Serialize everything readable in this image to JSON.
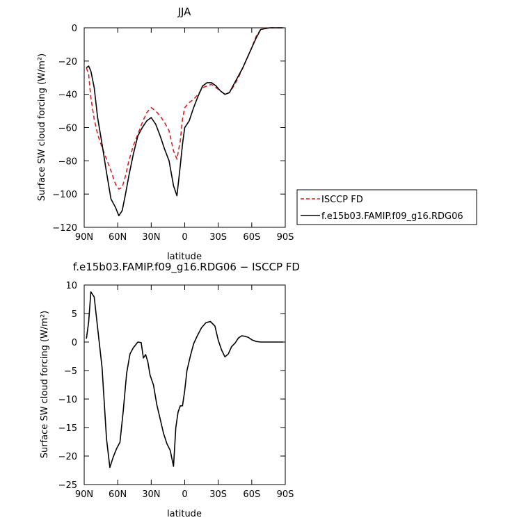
{
  "chart_data": [
    {
      "type": "line",
      "title": "JJA",
      "xlabel": "latitude",
      "ylabel": "Surface SW cloud forcing (W/m²)",
      "xlim": [
        90,
        -90
      ],
      "ylim": [
        -120,
        0
      ],
      "x_ticks": [
        {
          "value": 90,
          "label": "90N"
        },
        {
          "value": 60,
          "label": "60N"
        },
        {
          "value": 30,
          "label": "30N"
        },
        {
          "value": 0,
          "label": "0"
        },
        {
          "value": -30,
          "label": "30S"
        },
        {
          "value": -60,
          "label": "60S"
        },
        {
          "value": -90,
          "label": "90S"
        }
      ],
      "y_ticks": [
        {
          "value": 0,
          "label": "0"
        },
        {
          "value": -20,
          "label": "−20"
        },
        {
          "value": -40,
          "label": "−40"
        },
        {
          "value": -60,
          "label": "−60"
        },
        {
          "value": -80,
          "label": "−80"
        },
        {
          "value": -100,
          "label": "−100"
        },
        {
          "value": -120,
          "label": "−120"
        }
      ],
      "legend": {
        "placement": "right"
      },
      "series": [
        {
          "name": "ISCCP FD",
          "color": "#e31a1c",
          "dash": "dashed",
          "x": [
            88,
            86,
            84,
            81,
            78,
            74,
            70,
            66,
            62,
            59,
            56,
            53,
            50,
            46,
            42,
            38,
            34,
            30,
            26,
            22,
            18,
            14,
            10,
            7,
            4,
            2,
            0,
            -4,
            -8,
            -12,
            -16,
            -20,
            -24,
            -28,
            -32,
            -36,
            -40,
            -44,
            -48,
            -52,
            -56,
            -60,
            -64,
            -68,
            -72,
            -76,
            -80,
            -84,
            -88
          ],
          "values": [
            -24,
            -28,
            -42,
            -55,
            -64,
            -72,
            -79,
            -86,
            -94,
            -97,
            -96,
            -89,
            -80,
            -71,
            -64,
            -57,
            -51,
            -48,
            -50,
            -53,
            -57,
            -62,
            -74,
            -79,
            -68,
            -55,
            -48,
            -45,
            -43,
            -40,
            -36,
            -35,
            -34,
            -36,
            -38,
            -40,
            -39,
            -35,
            -30,
            -24,
            -18,
            -12,
            -5,
            -1,
            0,
            0,
            0,
            0,
            0
          ]
        },
        {
          "name": "f.e15b03.FAMIP.f09_g16.RDG06",
          "color": "#000000",
          "dash": "solid",
          "x": [
            88,
            86,
            84,
            81,
            78,
            74,
            70,
            66,
            62,
            59,
            56,
            53,
            50,
            46,
            42,
            38,
            34,
            30,
            26,
            22,
            18,
            14,
            10,
            7,
            4,
            2,
            0,
            -4,
            -8,
            -12,
            -16,
            -20,
            -24,
            -28,
            -32,
            -36,
            -40,
            -44,
            -48,
            -52,
            -56,
            -60,
            -64,
            -68,
            -72,
            -76,
            -80,
            -84,
            -88
          ],
          "values": [
            -24,
            -23,
            -26,
            -36,
            -54,
            -70,
            -87,
            -103,
            -108,
            -113,
            -110,
            -100,
            -89,
            -76,
            -65,
            -60,
            -56,
            -54,
            -58,
            -65,
            -73,
            -80,
            -95,
            -101,
            -83,
            -70,
            -60,
            -56,
            -48,
            -41,
            -35,
            -33,
            -33,
            -35,
            -38,
            -40,
            -39,
            -34,
            -29,
            -24,
            -18,
            -12,
            -6,
            -1,
            -0.5,
            0,
            0,
            0,
            0
          ]
        }
      ]
    },
    {
      "type": "line",
      "title": "f.e15b03.FAMIP.f09_g16.RDG06 − ISCCP FD",
      "xlabel": "latitude",
      "ylabel": "Surface SW cloud forcing (W/m²)",
      "xlim": [
        90,
        -90
      ],
      "ylim": [
        -25,
        10
      ],
      "x_ticks": [
        {
          "value": 90,
          "label": "90N"
        },
        {
          "value": 60,
          "label": "60N"
        },
        {
          "value": 30,
          "label": "30N"
        },
        {
          "value": 0,
          "label": "0"
        },
        {
          "value": -30,
          "label": "30S"
        },
        {
          "value": -60,
          "label": "60S"
        },
        {
          "value": -90,
          "label": "90S"
        }
      ],
      "y_ticks": [
        {
          "value": 10,
          "label": "10"
        },
        {
          "value": 5,
          "label": "5"
        },
        {
          "value": 0,
          "label": "0"
        },
        {
          "value": -5,
          "label": "−5"
        },
        {
          "value": -10,
          "label": "−10"
        },
        {
          "value": -15,
          "label": "−15"
        },
        {
          "value": -20,
          "label": "−20"
        },
        {
          "value": -25,
          "label": "−25"
        }
      ],
      "series": [
        {
          "color": "#000000",
          "dash": "solid",
          "x": [
            88,
            86,
            84,
            81,
            78,
            74,
            70,
            67,
            64,
            61,
            58,
            55,
            52,
            49,
            46,
            42,
            39,
            37,
            35,
            33,
            31,
            28,
            25,
            22,
            19,
            16,
            13,
            10,
            8,
            6,
            4,
            2,
            0,
            -2,
            -5,
            -8,
            -11,
            -15,
            -19,
            -23,
            -27,
            -30,
            -33,
            -36,
            -39,
            -42,
            -45,
            -48,
            -51,
            -54,
            -57,
            -60,
            -64,
            -68,
            -72,
            -76,
            -80,
            -84,
            -88
          ],
          "values": [
            0.6,
            3.5,
            8.8,
            7.9,
            2.5,
            -4.5,
            -17,
            -22,
            -20.2,
            -18.7,
            -17.6,
            -12,
            -5.5,
            -2.1,
            -1,
            0,
            -0.1,
            -2.8,
            -2.2,
            -3.5,
            -5.8,
            -7.5,
            -11,
            -13.5,
            -16,
            -17.8,
            -19,
            -21.8,
            -15,
            -12.3,
            -11.2,
            -11.2,
            -8.5,
            -5,
            -2.5,
            -0.3,
            1,
            2.5,
            3.4,
            3.6,
            2.8,
            0.3,
            -1.4,
            -2.6,
            -2.1,
            -0.8,
            -0.2,
            0.7,
            1.1,
            1,
            0.8,
            0.4,
            0.1,
            0,
            0,
            0,
            0,
            0,
            0
          ]
        }
      ]
    }
  ]
}
